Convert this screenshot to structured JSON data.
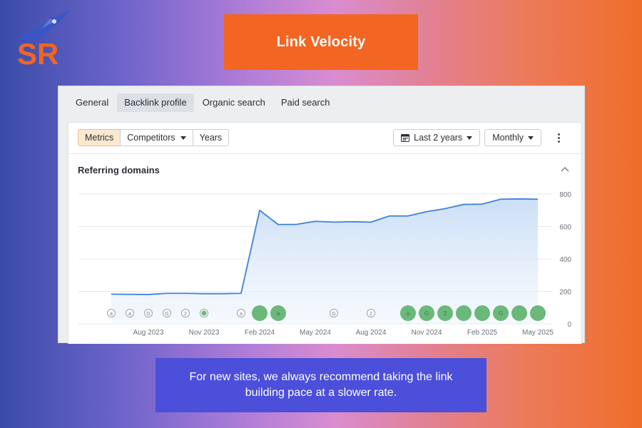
{
  "logo": {
    "text": "SR",
    "icon": "rocket-icon",
    "colors": {
      "letters": "#f26522",
      "rocket": "#3a56c5"
    }
  },
  "header": {
    "title": "Link Velocity"
  },
  "tabs": [
    {
      "label": "General",
      "active": false
    },
    {
      "label": "Backlink profile",
      "active": true
    },
    {
      "label": "Organic search",
      "active": false
    },
    {
      "label": "Paid search",
      "active": false
    }
  ],
  "toolbar": {
    "segments": [
      {
        "label": "Metrics",
        "active": true
      },
      {
        "label": "Competitors",
        "dropdown": true
      },
      {
        "label": "Years"
      }
    ],
    "date_range": {
      "icon": "calendar-icon",
      "label": "Last 2 years"
    },
    "interval": {
      "label": "Monthly"
    },
    "more_icon": "kebab-menu-icon"
  },
  "section": {
    "title": "Referring domains",
    "collapse_icon": "chevron-up-icon"
  },
  "chart_data": {
    "type": "area",
    "title": "Referring domains",
    "x_tick_labels": [
      "Aug 2023",
      "Nov 2023",
      "Feb 2024",
      "May 2024",
      "Aug 2024",
      "Nov 2024",
      "Feb 2025",
      "May 2025"
    ],
    "y_ticks": [
      0,
      200,
      400,
      600,
      800
    ],
    "ylim": [
      0,
      800
    ],
    "grid": true,
    "series": [
      {
        "points": [
          [
            "2023-06",
            183
          ],
          [
            "2023-07",
            182
          ],
          [
            "2023-08",
            181
          ],
          [
            "2023-09",
            188
          ],
          [
            "2023-10",
            188
          ],
          [
            "2023-11",
            186
          ],
          [
            "2023-12",
            186
          ],
          [
            "2024-01",
            188
          ],
          [
            "2024-02",
            700
          ],
          [
            "2024-03",
            612
          ],
          [
            "2024-04",
            613
          ],
          [
            "2024-05",
            632
          ],
          [
            "2024-06",
            627
          ],
          [
            "2024-07",
            629
          ],
          [
            "2024-08",
            627
          ],
          [
            "2024-09",
            665
          ],
          [
            "2024-10",
            665
          ],
          [
            "2024-11",
            691
          ],
          [
            "2024-12",
            710
          ],
          [
            "2025-01",
            736
          ],
          [
            "2025-02",
            738
          ],
          [
            "2025-03",
            768
          ],
          [
            "2025-04",
            770
          ],
          [
            "2025-05",
            768
          ]
        ]
      }
    ],
    "colors": {
      "line": "#3d82d8",
      "fill_top": "#c9ddf5",
      "fill_bottom": "#eef4fc",
      "grid": "#e6e8eb",
      "marker_filled": "#6ab87a"
    },
    "annotation_markers": [
      {
        "date": "2023-06",
        "label": "a",
        "filled": false
      },
      {
        "date": "2023-07",
        "label": "a",
        "filled": false
      },
      {
        "date": "2023-08",
        "label": "G",
        "filled": false
      },
      {
        "date": "2023-09",
        "label": "G",
        "filled": false
      },
      {
        "date": "2023-10",
        "label": "2",
        "filled": false
      },
      {
        "date": "2023-11",
        "label": "",
        "filled": false,
        "dot": true
      },
      {
        "date": "2024-01",
        "label": "a",
        "filled": false
      },
      {
        "date": "2024-02",
        "label": "",
        "filled": true
      },
      {
        "date": "2024-03",
        "label": "a",
        "filled": true
      },
      {
        "date": "2024-06",
        "label": "G",
        "filled": false
      },
      {
        "date": "2024-08",
        "label": "2",
        "filled": false
      },
      {
        "date": "2024-10",
        "label": "a",
        "filled": true
      },
      {
        "date": "2024-11",
        "label": "G",
        "filled": true
      },
      {
        "date": "2024-12",
        "label": "2",
        "filled": true
      },
      {
        "date": "2025-01",
        "label": "",
        "filled": true
      },
      {
        "date": "2025-02",
        "label": "",
        "filled": true
      },
      {
        "date": "2025-03",
        "label": "G",
        "filled": true
      },
      {
        "date": "2025-04",
        "label": "",
        "filled": true
      },
      {
        "date": "2025-05",
        "label": "",
        "filled": true
      }
    ]
  },
  "footer": {
    "note": "For new sites, we always recommend taking the link building pace at a slower rate."
  }
}
